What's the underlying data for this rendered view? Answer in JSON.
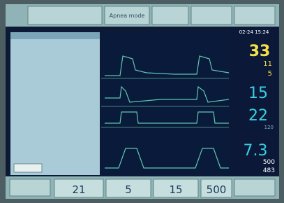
{
  "header": {
    "mode_button": "Apnea mode",
    "datetime": "02-24 15:24"
  },
  "monitor": {
    "values": [
      "33",
      "11",
      "5",
      "15",
      "22",
      "120",
      "7.3",
      "500",
      "483"
    ]
  },
  "settings": [
    "21",
    "5",
    "15",
    "500"
  ]
}
